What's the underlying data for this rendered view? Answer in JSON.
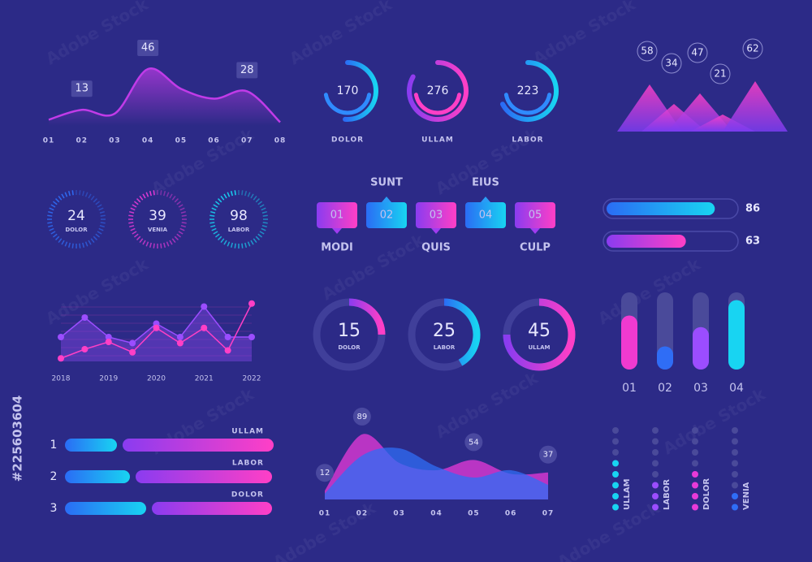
{
  "watermark": "Adobe Stock",
  "stock_id": "#225603604",
  "chart_data": [
    {
      "type": "line",
      "categories": [
        "01",
        "02",
        "03",
        "04",
        "05",
        "06",
        "07",
        "08"
      ],
      "values": [
        5,
        13,
        10,
        46,
        30,
        22,
        28,
        3
      ],
      "value_labels": [
        null,
        "13",
        null,
        "46",
        null,
        null,
        "28",
        null
      ],
      "color": "#c13be8"
    },
    {
      "type": "gauge",
      "categories": [
        "DOLOR",
        "ULLAM",
        "LABOR"
      ],
      "values": [
        170,
        276,
        223
      ]
    },
    {
      "type": "mountain",
      "values": [
        58,
        34,
        47,
        21,
        62
      ]
    },
    {
      "type": "dial",
      "categories": [
        "DOLOR",
        "VENIA",
        "LABOR"
      ],
      "values": [
        24,
        39,
        98
      ],
      "colors": [
        "#2f6df6",
        "#e83ad8",
        "#18d4f2"
      ]
    },
    {
      "type": "steps",
      "categories": [
        "01",
        "02",
        "03",
        "04",
        "05"
      ],
      "captions": [
        "MODI",
        "SUNT",
        "QUIS",
        "EIUS",
        "CULP"
      ]
    },
    {
      "type": "progress",
      "values": [
        86,
        63
      ]
    },
    {
      "type": "linepoints",
      "categories": [
        "2018",
        null,
        "2019",
        null,
        "2020",
        null,
        "2021",
        null,
        "2022"
      ],
      "series": [
        {
          "color": "#9b4dff",
          "values": [
            40,
            72,
            40,
            30,
            62,
            40,
            90,
            40,
            40
          ]
        },
        {
          "color": "#ff3fc6",
          "values": [
            5,
            20,
            32,
            15,
            55,
            30,
            55,
            18,
            95
          ]
        }
      ]
    },
    {
      "type": "donut",
      "categories": [
        "DOLOR",
        "LABOR",
        "ULLAM"
      ],
      "values": [
        15,
        25,
        45
      ]
    },
    {
      "type": "vbar",
      "categories": [
        "01",
        "02",
        "03",
        "04"
      ],
      "values": [
        70,
        30,
        55,
        90
      ],
      "colors": [
        "#f03ad0",
        "#2f6df6",
        "#9b4dff",
        "#18d4f2"
      ]
    },
    {
      "type": "hbar",
      "categories": [
        "1",
        "2",
        "3"
      ],
      "labels": [
        "ULLAM",
        "LABOR",
        "DOLOR"
      ],
      "series": [
        {
          "color": "#2a8bff",
          "values": [
            32,
            40,
            50
          ]
        },
        {
          "color": "#e83ad8",
          "values": [
            93,
            84,
            74
          ]
        }
      ]
    },
    {
      "type": "area",
      "categories": [
        "01",
        "02",
        "03",
        "04",
        "05",
        "06",
        "07"
      ],
      "series": [
        {
          "color": "#e83ad8",
          "values": [
            12,
            89,
            50,
            40,
            54,
            35,
            37
          ],
          "value_labels": [
            "12",
            "89",
            null,
            null,
            "54",
            null,
            "37"
          ]
        },
        {
          "color": "#2f6df6",
          "values": [
            8,
            60,
            70,
            45,
            30,
            40,
            20
          ]
        }
      ]
    },
    {
      "type": "dots",
      "categories": [
        "ULLAM",
        "LABOR",
        "DOLOR",
        "VENIA"
      ],
      "values": [
        5,
        3,
        4,
        2
      ],
      "colors": [
        "#18d4f2",
        "#9b4dff",
        "#e83ad8",
        "#2f6df6"
      ]
    }
  ]
}
